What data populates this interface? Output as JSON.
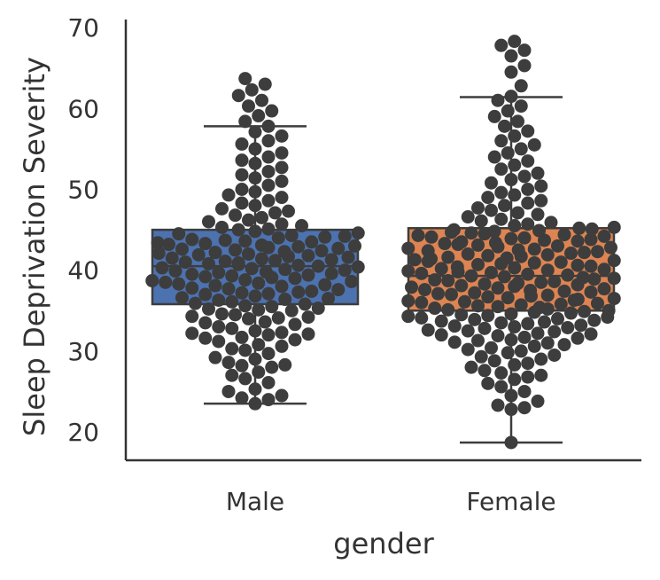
{
  "chart_data": {
    "type": "box",
    "overlay": "swarm",
    "xlabel": "gender",
    "ylabel": "Sleep Deprivation Severity",
    "ylim": [
      16.5,
      71
    ],
    "yticks": [
      20,
      30,
      40,
      50,
      60,
      70
    ],
    "grid": false,
    "categories": [
      "Male",
      "Female"
    ],
    "series": [
      {
        "category": "Male",
        "color": "#4c72b0",
        "box": {
          "whisker_low": 23.5,
          "q1": 35.8,
          "median": 40.5,
          "q3": 45.0,
          "whisker_high": 57.8
        },
        "points": [
          23.5,
          24.0,
          24.2,
          24.5,
          25.0,
          25.3,
          26.1,
          26.6,
          27.0,
          27.4,
          28.0,
          28.2,
          28.3,
          28.6,
          29.0,
          29.2,
          29.7,
          30.1,
          30.3,
          30.6,
          30.8,
          31.2,
          31.4,
          31.6,
          31.7,
          32.0,
          32.1,
          32.2,
          32.3,
          32.5,
          32.8,
          33.0,
          33.3,
          33.5,
          33.6,
          34.0,
          34.1,
          34.2,
          34.3,
          34.5,
          34.6,
          35.0,
          35.1,
          35.2,
          35.3,
          35.5,
          35.6,
          35.8,
          35.9,
          36.1,
          36.3,
          36.4,
          36.5,
          36.6,
          36.8,
          37.0,
          37.1,
          37.2,
          37.3,
          37.4,
          37.6,
          37.7,
          37.8,
          38.0,
          38.1,
          38.2,
          38.3,
          38.4,
          38.5,
          38.6,
          38.7,
          38.8,
          39.0,
          39.1,
          39.2,
          39.3,
          39.4,
          39.5,
          39.6,
          39.7,
          39.8,
          39.9,
          40.0,
          40.1,
          40.2,
          40.3,
          40.4,
          40.5,
          40.6,
          40.7,
          40.8,
          40.9,
          41.0,
          41.1,
          41.2,
          41.3,
          41.4,
          41.5,
          41.6,
          41.7,
          41.8,
          41.9,
          42.0,
          42.1,
          42.2,
          42.3,
          42.4,
          42.5,
          42.6,
          42.7,
          42.8,
          42.9,
          43.0,
          43.1,
          43.2,
          43.3,
          43.4,
          43.5,
          43.6,
          43.7,
          43.8,
          44.0,
          44.1,
          44.2,
          44.3,
          44.5,
          44.6,
          44.8,
          45.0,
          45.1,
          45.3,
          45.5,
          45.7,
          46.0,
          46.2,
          46.5,
          46.8,
          47.1,
          47.3,
          47.6,
          48.0,
          48.3,
          48.6,
          49.0,
          49.3,
          49.7,
          50.0,
          50.5,
          51.0,
          51.4,
          51.8,
          52.2,
          52.7,
          53.2,
          53.6,
          54.0,
          54.5,
          55.0,
          55.6,
          56.0,
          56.6,
          57.1,
          57.8,
          58.4,
          59.1,
          59.7,
          60.3,
          61.0,
          61.6,
          62.3,
          63.0,
          63.7
        ]
      },
      {
        "category": "Female",
        "color": "#dd8452",
        "box": {
          "whisker_low": 18.7,
          "q1": 35.0,
          "median": 39.3,
          "q3": 45.2,
          "whisker_high": 61.4
        },
        "points": [
          18.7,
          22.8,
          23.0,
          23.3,
          23.8,
          24.5,
          25.0,
          25.6,
          26.0,
          26.5,
          26.8,
          27.0,
          27.3,
          27.6,
          28.0,
          28.3,
          28.5,
          28.8,
          29.0,
          29.3,
          29.5,
          29.8,
          30.0,
          30.2,
          30.4,
          30.6,
          30.8,
          31.0,
          31.1,
          31.3,
          31.4,
          31.6,
          31.7,
          31.9,
          32.0,
          32.1,
          32.2,
          32.4,
          32.5,
          32.6,
          32.8,
          32.9,
          33.0,
          33.1,
          33.2,
          33.4,
          33.5,
          33.6,
          33.7,
          33.8,
          33.9,
          34.0,
          34.1,
          34.2,
          34.3,
          34.4,
          34.5,
          34.6,
          34.7,
          34.8,
          34.9,
          35.0,
          35.1,
          35.2,
          35.3,
          35.4,
          35.5,
          35.6,
          35.7,
          35.8,
          35.9,
          36.0,
          36.1,
          36.2,
          36.3,
          36.4,
          36.5,
          36.6,
          36.7,
          36.8,
          36.9,
          37.0,
          37.1,
          37.2,
          37.3,
          37.4,
          37.5,
          37.6,
          37.7,
          37.8,
          37.9,
          38.0,
          38.1,
          38.2,
          38.3,
          38.4,
          38.5,
          38.6,
          38.7,
          38.8,
          38.9,
          39.0,
          39.1,
          39.2,
          39.3,
          39.4,
          39.5,
          39.6,
          39.7,
          39.8,
          39.9,
          40.0,
          40.1,
          40.2,
          40.3,
          40.4,
          40.5,
          40.6,
          40.7,
          40.8,
          40.9,
          41.0,
          41.1,
          41.2,
          41.3,
          41.4,
          41.5,
          41.6,
          41.7,
          41.8,
          41.9,
          42.0,
          42.1,
          42.2,
          42.3,
          42.4,
          42.5,
          42.6,
          42.7,
          42.8,
          42.9,
          43.0,
          43.1,
          43.2,
          43.3,
          43.4,
          43.5,
          43.6,
          43.7,
          43.8,
          43.9,
          44.0,
          44.1,
          44.2,
          44.3,
          44.4,
          44.5,
          44.6,
          44.7,
          44.8,
          44.9,
          45.0,
          45.1,
          45.2,
          45.3,
          45.5,
          45.7,
          45.9,
          46.1,
          46.3,
          46.6,
          46.9,
          47.1,
          47.4,
          47.7,
          48.0,
          48.3,
          48.6,
          49.0,
          49.3,
          49.6,
          50.0,
          50.4,
          50.8,
          51.2,
          51.6,
          52.0,
          52.5,
          53.0,
          53.5,
          54.0,
          54.5,
          55.0,
          55.5,
          56.0,
          56.6,
          57.2,
          57.8,
          58.4,
          59.0,
          59.7,
          60.3,
          61.0,
          61.5,
          62.8,
          64.5,
          65.3,
          66.5,
          67.2,
          67.8,
          68.3
        ]
      }
    ]
  }
}
